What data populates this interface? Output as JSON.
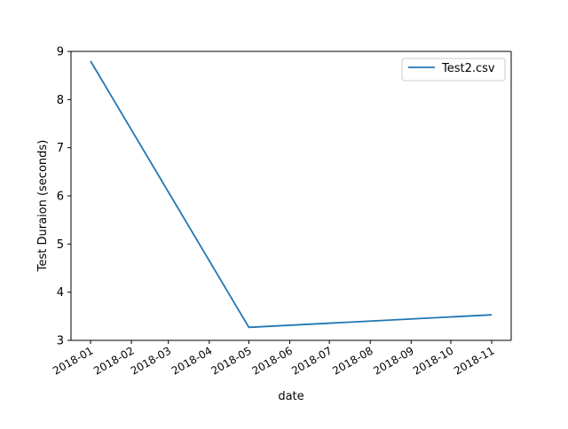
{
  "chart_data": {
    "type": "line",
    "xlabel": "date",
    "ylabel": "Test Duraion (seconds)",
    "xlim": [
      "2018-01-01",
      "2018-11-01"
    ],
    "ylim": [
      3,
      9
    ],
    "x_ticks": [
      "2018-01",
      "2018-02",
      "2018-03",
      "2018-04",
      "2018-05",
      "2018-06",
      "2018-07",
      "2018-08",
      "2018-09",
      "2018-10",
      "2018-11"
    ],
    "y_ticks": [
      3,
      4,
      5,
      6,
      7,
      8,
      9
    ],
    "grid": false,
    "legend_position": "top-right",
    "series": [
      {
        "name": "Test2.csv",
        "color": "#1f77b4",
        "x": [
          "2018-01-01",
          "2018-05-01",
          "2018-11-01"
        ],
        "y": [
          8.8,
          3.27,
          3.53
        ]
      }
    ]
  }
}
